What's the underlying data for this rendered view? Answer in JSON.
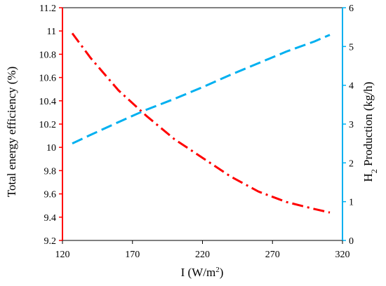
{
  "chart_data": {
    "type": "line",
    "x_axis": {
      "label_main": "I (W/m",
      "label_sup": "2",
      "label_end": ")",
      "range": [
        120,
        320
      ],
      "ticks": [
        "120",
        "170",
        "220",
        "270",
        "320"
      ]
    },
    "y_left": {
      "label": "Total energy efficiency (%)",
      "range": [
        9.2,
        11.2
      ],
      "ticks": [
        "9.2",
        "9.4",
        "9.6",
        "9.8",
        "10",
        "10.2",
        "10.4",
        "10.6",
        "10.8",
        "11",
        "11.2"
      ],
      "color": "#ff0000"
    },
    "y_right": {
      "label_pre": "H",
      "label_sub": "2",
      "label_post": " Production (kg/h)",
      "range": [
        0,
        6
      ],
      "ticks": [
        "0",
        "1",
        "2",
        "3",
        "4",
        "5",
        "6"
      ],
      "color": "#00b0f0"
    },
    "series": [
      {
        "axis": "left",
        "style": "dash-dot",
        "color": "#ff0000",
        "x": [
          127,
          140,
          160,
          180,
          200,
          220,
          240,
          260,
          280,
          300,
          311
        ],
        "y": [
          10.98,
          10.77,
          10.49,
          10.27,
          10.07,
          9.91,
          9.75,
          9.62,
          9.53,
          9.47,
          9.44
        ]
      },
      {
        "axis": "right",
        "style": "dash",
        "color": "#00b0f0",
        "x": [
          127,
          140,
          160,
          180,
          200,
          220,
          240,
          260,
          280,
          300,
          311
        ],
        "y": [
          2.5,
          2.72,
          3.05,
          3.37,
          3.65,
          3.95,
          4.27,
          4.57,
          4.87,
          5.13,
          5.3
        ]
      }
    ],
    "grid": false,
    "legend": "none"
  }
}
